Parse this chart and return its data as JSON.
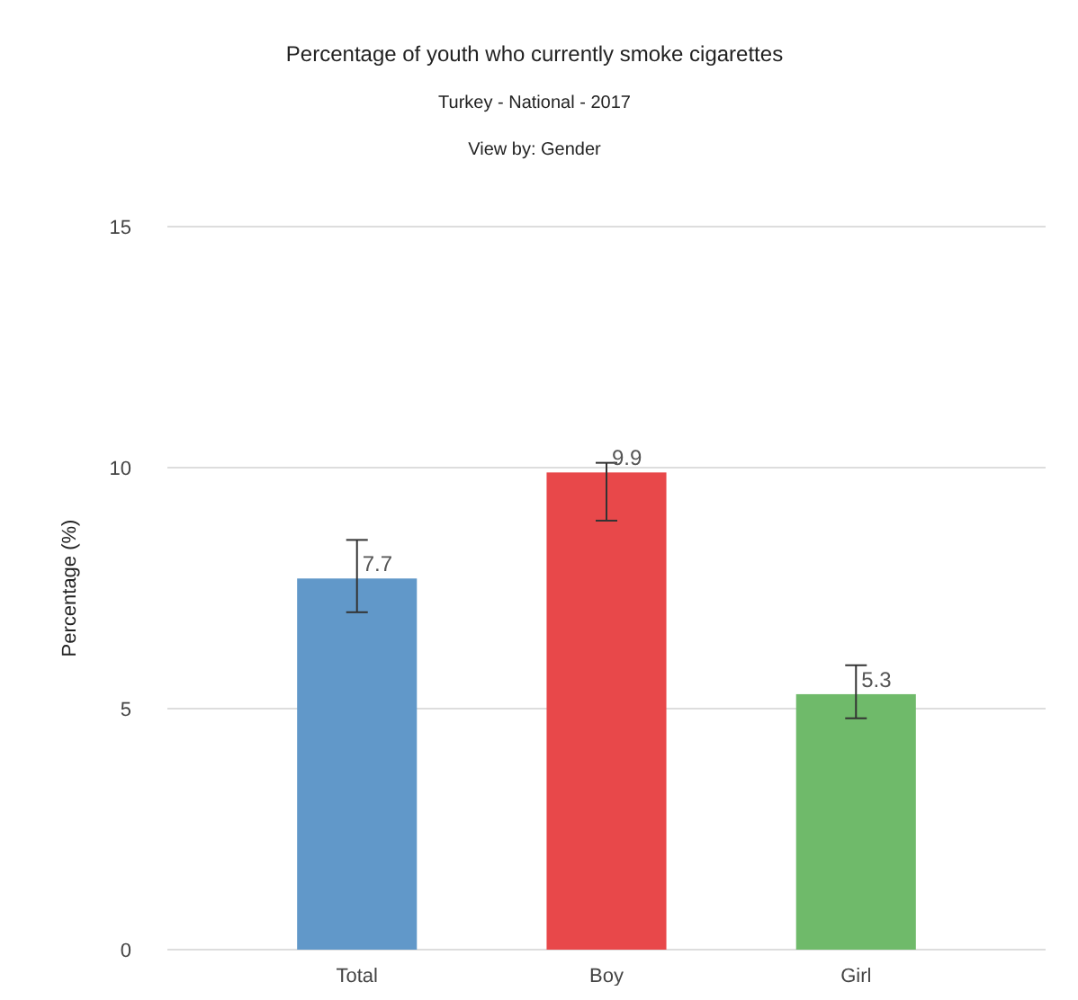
{
  "chart_data": {
    "type": "bar",
    "title": "Percentage of youth who currently smoke cigarettes",
    "subtitle": [
      "Turkey - National - 2017",
      "View by: Gender"
    ],
    "ylabel": "Percentage (%)",
    "categories": [
      "Total",
      "Boy",
      "Girl"
    ],
    "values": [
      7.7,
      9.9,
      5.3
    ],
    "colors": [
      "#6198c9",
      "#e8484a",
      "#6fba6a"
    ],
    "errors": [
      [
        7.0,
        8.5
      ],
      [
        8.9,
        10.1
      ],
      [
        4.8,
        5.9
      ]
    ],
    "data_labels": true,
    "ylim": [
      0,
      15
    ],
    "yticks": [
      0,
      5,
      10,
      15
    ],
    "grid": "y"
  }
}
